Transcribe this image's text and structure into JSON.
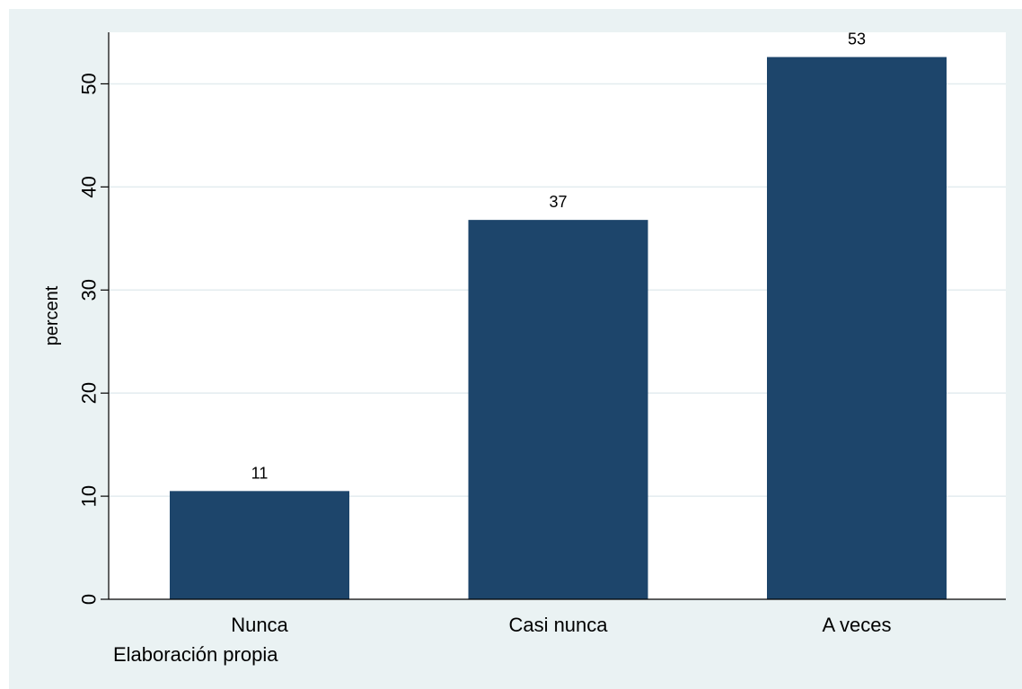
{
  "chart_data": {
    "type": "bar",
    "categories": [
      "Nunca",
      "Casi nunca",
      "A veces"
    ],
    "values": [
      10.5,
      36.8,
      52.6
    ],
    "data_labels": [
      "11",
      "37",
      "53"
    ],
    "title": "",
    "xlabel": "",
    "ylabel": "percent",
    "ylim": [
      0,
      55
    ],
    "yticks": [
      0,
      10,
      20,
      30,
      40,
      50
    ],
    "grid": true,
    "note": "Elaboración  propia",
    "colors": {
      "bar": "#1d456b",
      "plot_background": "#ffffff",
      "outer_background": "#eaf2f3",
      "grid": "#e3ecef"
    }
  }
}
